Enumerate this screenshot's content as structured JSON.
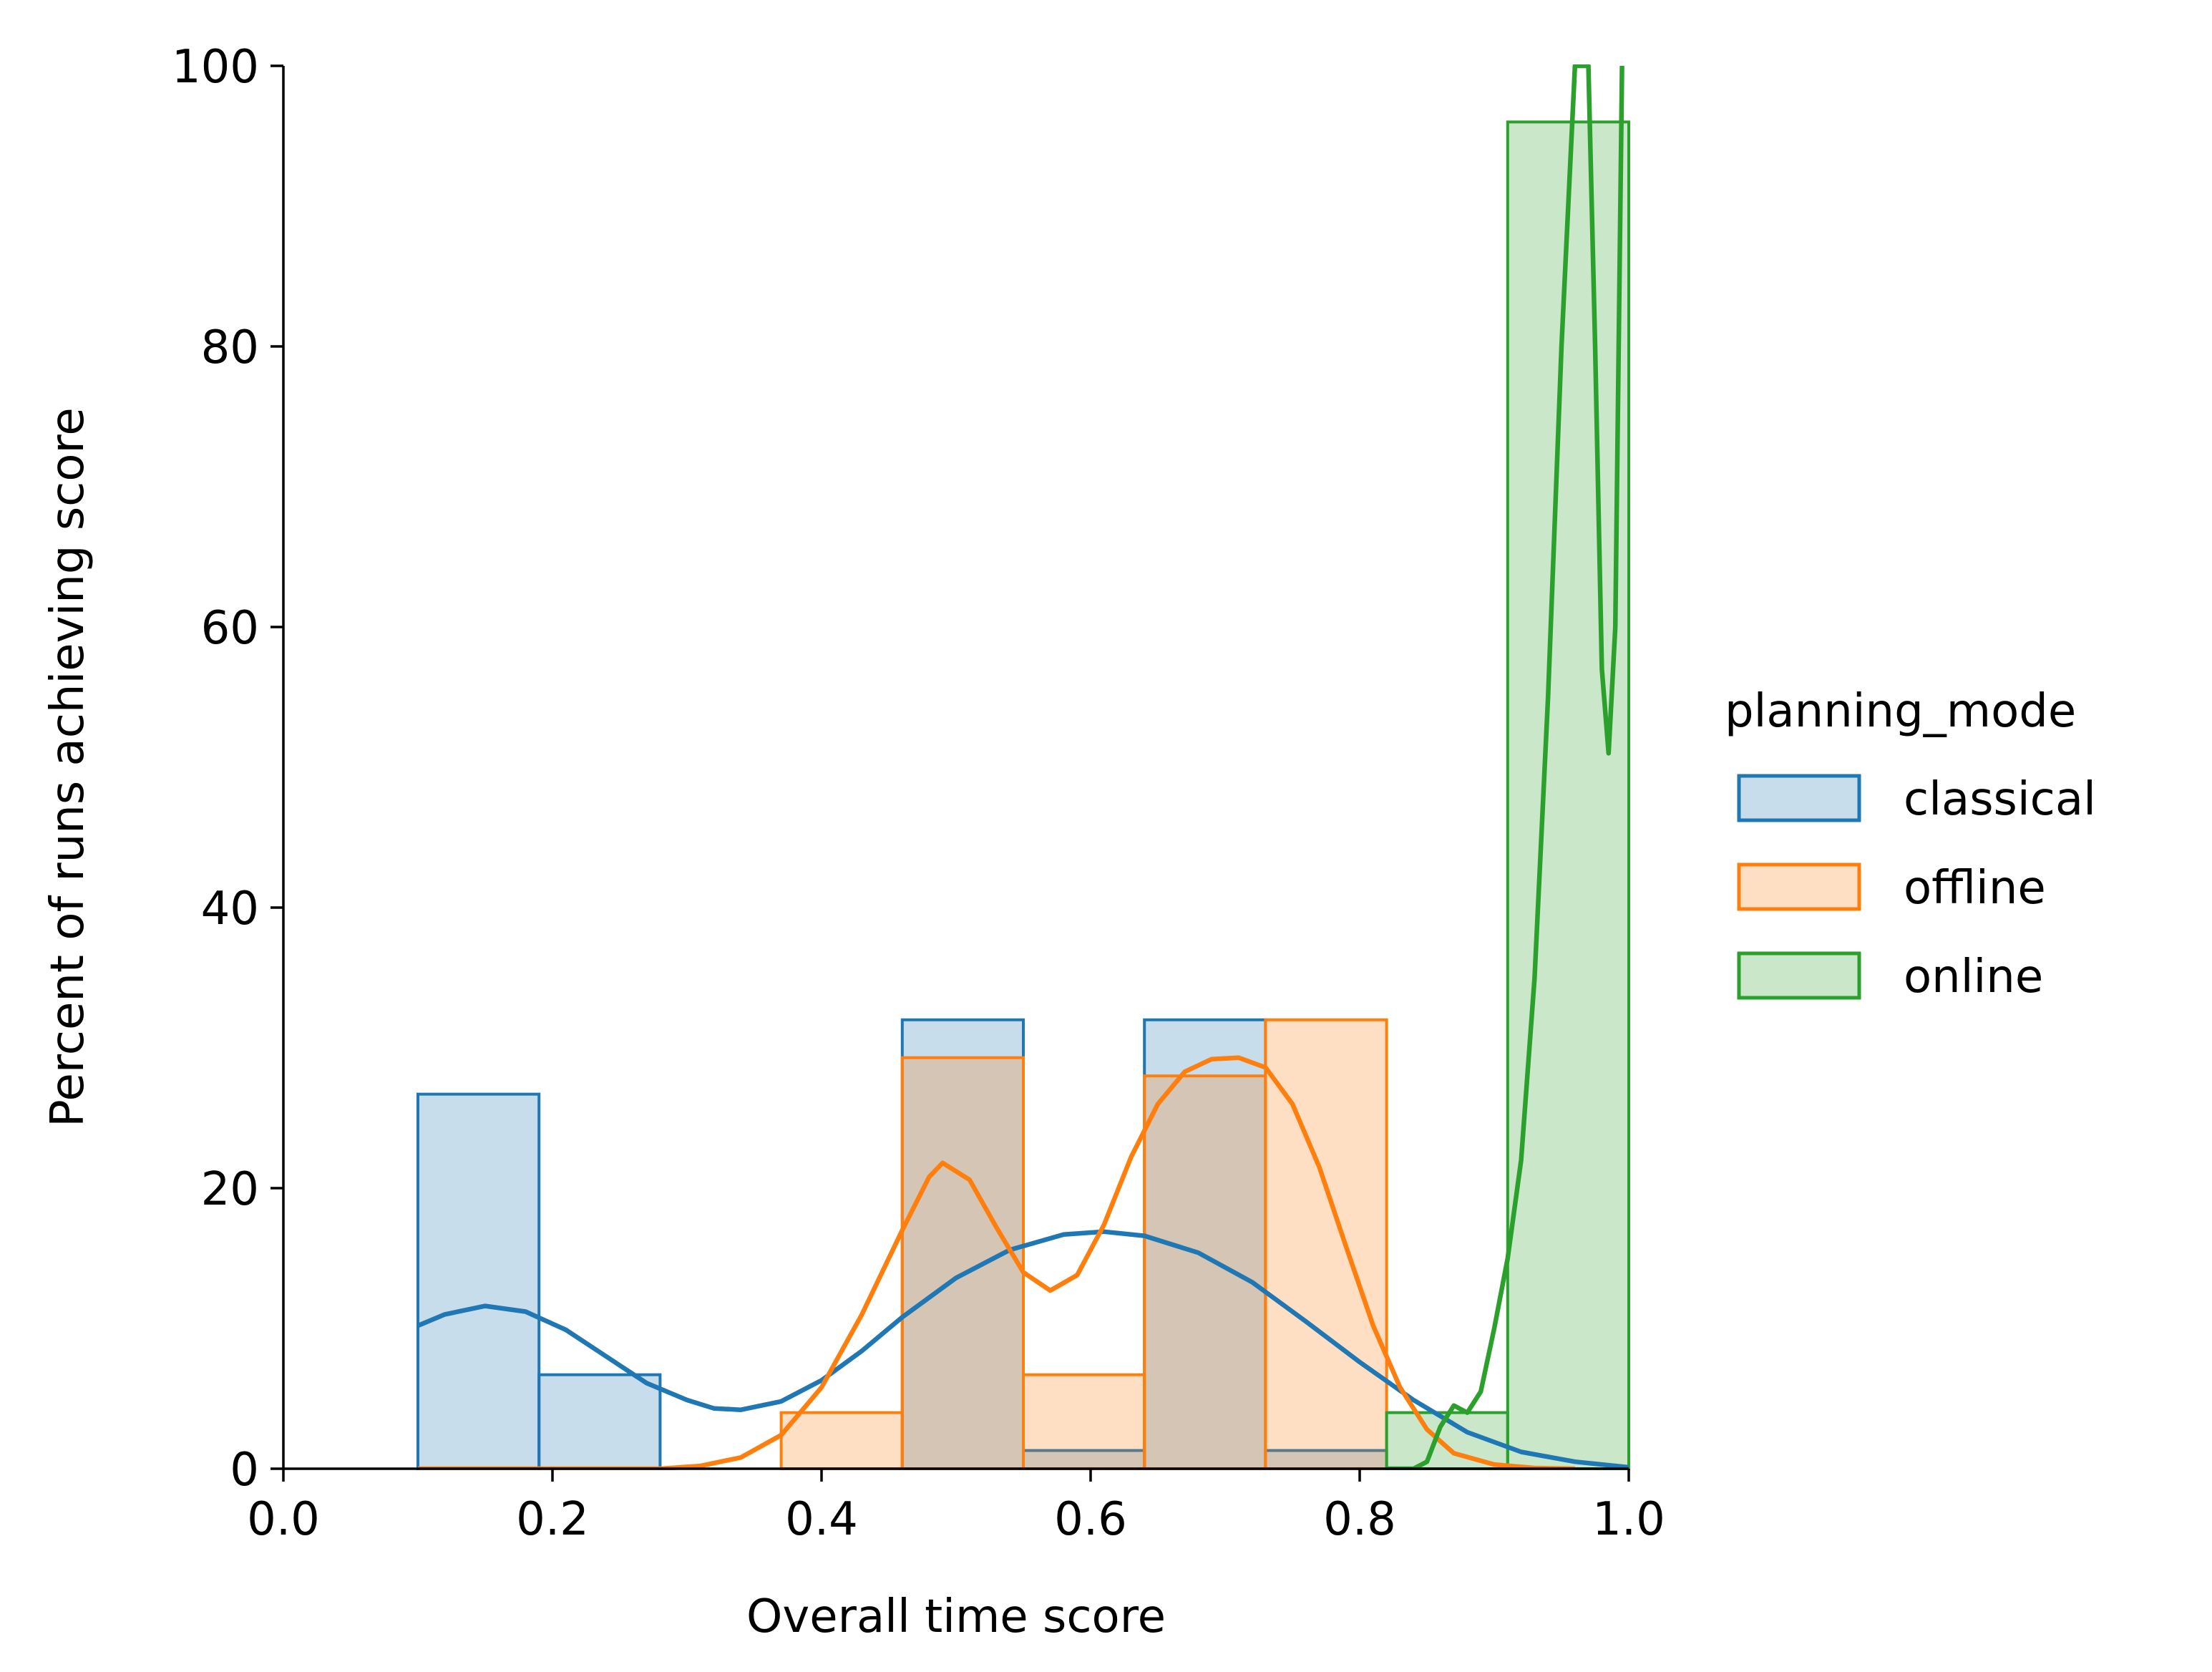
{
  "chart_data": {
    "type": "histogram",
    "xlabel": "Overall time score",
    "ylabel": "Percent of runs achieving score",
    "xlim": [
      0.0,
      1.0
    ],
    "ylim": [
      0,
      100
    ],
    "xticks": [
      "0.0",
      "0.2",
      "0.4",
      "0.6",
      "0.8",
      "1.0"
    ],
    "yticks": [
      "0",
      "20",
      "40",
      "60",
      "80",
      "100"
    ],
    "grid": false,
    "legend": {
      "title": "planning_mode",
      "placement": "right"
    },
    "series": [
      {
        "name": "classical",
        "color": "#1f77b4",
        "bins": [
          {
            "x0": 0.1,
            "x1": 0.19,
            "value": 26.7
          },
          {
            "x0": 0.19,
            "x1": 0.28,
            "value": 6.7
          },
          {
            "x0": 0.46,
            "x1": 0.55,
            "value": 32.0
          },
          {
            "x0": 0.55,
            "x1": 0.64,
            "value": 1.3
          },
          {
            "x0": 0.64,
            "x1": 0.73,
            "value": 32.0
          },
          {
            "x0": 0.73,
            "x1": 0.82,
            "value": 1.3
          }
        ],
        "kde": [
          [
            0.1,
            10.2
          ],
          [
            0.12,
            11.0
          ],
          [
            0.15,
            11.6
          ],
          [
            0.18,
            11.2
          ],
          [
            0.21,
            9.9
          ],
          [
            0.24,
            8.0
          ],
          [
            0.27,
            6.1
          ],
          [
            0.3,
            4.9
          ],
          [
            0.32,
            4.3
          ],
          [
            0.34,
            4.2
          ],
          [
            0.37,
            4.8
          ],
          [
            0.4,
            6.3
          ],
          [
            0.43,
            8.4
          ],
          [
            0.46,
            10.8
          ],
          [
            0.5,
            13.6
          ],
          [
            0.54,
            15.6
          ],
          [
            0.58,
            16.7
          ],
          [
            0.61,
            16.9
          ],
          [
            0.64,
            16.6
          ],
          [
            0.68,
            15.4
          ],
          [
            0.72,
            13.3
          ],
          [
            0.76,
            10.5
          ],
          [
            0.8,
            7.6
          ],
          [
            0.84,
            4.9
          ],
          [
            0.88,
            2.6
          ],
          [
            0.92,
            1.2
          ],
          [
            0.96,
            0.5
          ],
          [
            1.0,
            0.1
          ]
        ]
      },
      {
        "name": "offline",
        "color": "#ff7f0e",
        "bins": [
          {
            "x0": 0.37,
            "x1": 0.46,
            "value": 4.0
          },
          {
            "x0": 0.46,
            "x1": 0.55,
            "value": 29.3
          },
          {
            "x0": 0.55,
            "x1": 0.64,
            "value": 6.7
          },
          {
            "x0": 0.64,
            "x1": 0.73,
            "value": 28.0
          },
          {
            "x0": 0.73,
            "x1": 0.82,
            "value": 32.0
          }
        ],
        "kde": [
          [
            0.1,
            0.0
          ],
          [
            0.28,
            0.0
          ],
          [
            0.31,
            0.2
          ],
          [
            0.34,
            0.8
          ],
          [
            0.37,
            2.4
          ],
          [
            0.4,
            5.8
          ],
          [
            0.43,
            11.0
          ],
          [
            0.46,
            17.0
          ],
          [
            0.48,
            20.8
          ],
          [
            0.49,
            21.8
          ],
          [
            0.51,
            20.6
          ],
          [
            0.53,
            17.2
          ],
          [
            0.55,
            14.0
          ],
          [
            0.57,
            12.7
          ],
          [
            0.59,
            13.8
          ],
          [
            0.61,
            17.4
          ],
          [
            0.63,
            22.2
          ],
          [
            0.65,
            26.0
          ],
          [
            0.67,
            28.3
          ],
          [
            0.69,
            29.2
          ],
          [
            0.71,
            29.3
          ],
          [
            0.73,
            28.6
          ],
          [
            0.75,
            26.0
          ],
          [
            0.77,
            21.5
          ],
          [
            0.79,
            15.8
          ],
          [
            0.81,
            10.2
          ],
          [
            0.83,
            5.8
          ],
          [
            0.85,
            2.8
          ],
          [
            0.87,
            1.1
          ],
          [
            0.9,
            0.3
          ],
          [
            0.93,
            0.05
          ],
          [
            0.96,
            0.0
          ]
        ]
      },
      {
        "name": "online",
        "color": "#2ca02c",
        "bins": [
          {
            "x0": 0.82,
            "x1": 0.91,
            "value": 4.0
          },
          {
            "x0": 0.91,
            "x1": 1.0,
            "value": 96.0
          }
        ],
        "kde": [
          [
            0.82,
            0.0
          ],
          [
            0.84,
            0.0
          ],
          [
            0.85,
            0.5
          ],
          [
            0.86,
            3.0
          ],
          [
            0.87,
            4.5
          ],
          [
            0.88,
            4.0
          ],
          [
            0.89,
            5.5
          ],
          [
            0.9,
            10.0
          ],
          [
            0.91,
            15.0
          ],
          [
            0.92,
            22.0
          ],
          [
            0.93,
            35.0
          ],
          [
            0.94,
            55.0
          ],
          [
            0.95,
            80.0
          ],
          [
            0.96,
            100.0
          ],
          [
            0.97,
            100.0
          ],
          [
            0.975,
            80.0
          ],
          [
            0.98,
            57.0
          ],
          [
            0.985,
            51.0
          ],
          [
            0.99,
            60.0
          ],
          [
            0.995,
            100.0
          ]
        ]
      }
    ]
  }
}
